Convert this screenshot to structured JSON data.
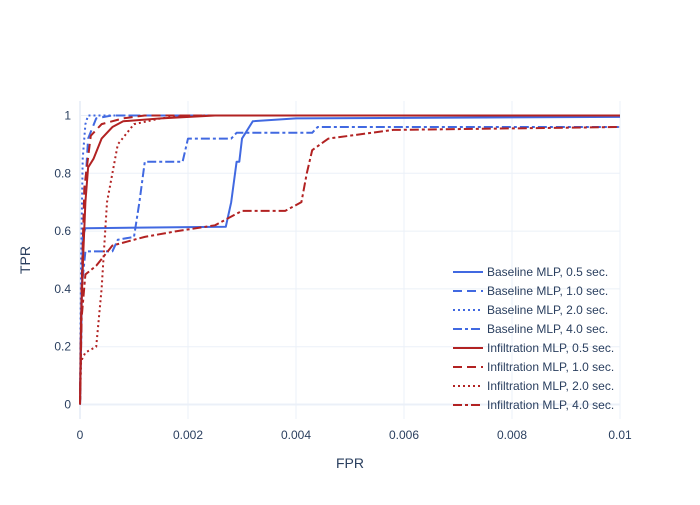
{
  "chart_data": {
    "type": "line",
    "xlabel": "FPR",
    "ylabel": "TPR",
    "xlim": [
      0,
      0.01
    ],
    "ylim": [
      0,
      1
    ],
    "x_ticks": [
      0,
      0.002,
      0.004,
      0.006,
      0.008,
      0.01
    ],
    "x_tick_labels": [
      "0",
      "0.002",
      "0.004",
      "0.006",
      "0.008",
      "0.01"
    ],
    "y_ticks": [
      0,
      0.2,
      0.4,
      0.6,
      0.8,
      1
    ],
    "y_tick_labels": [
      "0",
      "0.2",
      "0.4",
      "0.6",
      "0.8",
      "1"
    ],
    "grid": true,
    "legend_position": "bottom-right",
    "colors": {
      "baseline": "#4169e1",
      "infiltration": "#b22222"
    },
    "series": [
      {
        "name": "Baseline MLP, 0.5 sec.",
        "color": "#4169e1",
        "dash": "solid",
        "points": [
          [
            0,
            0
          ],
          [
            2e-05,
            0.2
          ],
          [
            5e-05,
            0.58
          ],
          [
            0.0001,
            0.61
          ],
          [
            0.0027,
            0.615
          ],
          [
            0.0028,
            0.7
          ],
          [
            0.0029,
            0.84
          ],
          [
            0.00295,
            0.84
          ],
          [
            0.003,
            0.92
          ],
          [
            0.0031,
            0.95
          ],
          [
            0.0032,
            0.98
          ],
          [
            0.004,
            0.99
          ],
          [
            0.01,
            0.995
          ]
        ]
      },
      {
        "name": "Baseline MLP, 1.0 sec.",
        "color": "#4169e1",
        "dash": "dash",
        "points": [
          [
            0,
            0
          ],
          [
            3e-05,
            0.4
          ],
          [
            8e-05,
            0.7
          ],
          [
            0.00015,
            0.92
          ],
          [
            0.0003,
            0.99
          ],
          [
            0.0006,
            1.0
          ],
          [
            0.01,
            1.0
          ]
        ]
      },
      {
        "name": "Baseline MLP, 2.0 sec.",
        "color": "#4169e1",
        "dash": "dot",
        "points": [
          [
            0,
            0
          ],
          [
            2e-05,
            0.5
          ],
          [
            5e-05,
            0.85
          ],
          [
            0.0001,
            0.97
          ],
          [
            0.00015,
            1.0
          ],
          [
            0.01,
            1.0
          ]
        ]
      },
      {
        "name": "Baseline MLP, 4.0 sec.",
        "color": "#4169e1",
        "dash": "dashdot",
        "points": [
          [
            0,
            0
          ],
          [
            3e-05,
            0.4
          ],
          [
            0.0001,
            0.53
          ],
          [
            0.0006,
            0.53
          ],
          [
            0.0007,
            0.57
          ],
          [
            0.001,
            0.58
          ],
          [
            0.0011,
            0.7
          ],
          [
            0.0012,
            0.84
          ],
          [
            0.0019,
            0.84
          ],
          [
            0.002,
            0.92
          ],
          [
            0.0028,
            0.92
          ],
          [
            0.0029,
            0.94
          ],
          [
            0.0043,
            0.94
          ],
          [
            0.0044,
            0.96
          ],
          [
            0.01,
            0.96
          ]
        ]
      },
      {
        "name": "Infiltration MLP, 0.5 sec.",
        "color": "#b22222",
        "dash": "solid",
        "points": [
          [
            0,
            0
          ],
          [
            2e-05,
            0.3
          ],
          [
            6e-05,
            0.52
          ],
          [
            0.0001,
            0.7
          ],
          [
            0.00015,
            0.82
          ],
          [
            0.00025,
            0.85
          ],
          [
            0.0004,
            0.92
          ],
          [
            0.0006,
            0.96
          ],
          [
            0.0008,
            0.98
          ],
          [
            0.0015,
            0.99
          ],
          [
            0.0025,
            1.0
          ],
          [
            0.01,
            1.0
          ]
        ]
      },
      {
        "name": "Infiltration MLP, 1.0 sec.",
        "color": "#b22222",
        "dash": "dash",
        "points": [
          [
            0,
            0
          ],
          [
            3e-05,
            0.4
          ],
          [
            8e-05,
            0.75
          ],
          [
            0.0002,
            0.93
          ],
          [
            0.0004,
            0.97
          ],
          [
            0.0008,
            0.99
          ],
          [
            0.0012,
            1.0
          ],
          [
            0.01,
            1.0
          ]
        ]
      },
      {
        "name": "Infiltration MLP, 2.0 sec.",
        "color": "#b22222",
        "dash": "dot",
        "points": [
          [
            0,
            0
          ],
          [
            2e-05,
            0.15
          ],
          [
            0.0001,
            0.18
          ],
          [
            0.0003,
            0.2
          ],
          [
            0.0004,
            0.4
          ],
          [
            0.0005,
            0.7
          ],
          [
            0.0007,
            0.9
          ],
          [
            0.001,
            0.97
          ],
          [
            0.0015,
            0.99
          ],
          [
            0.002,
            1.0
          ],
          [
            0.01,
            1.0
          ]
        ]
      },
      {
        "name": "Infiltration MLP, 4.0 sec.",
        "color": "#b22222",
        "dash": "dashdot",
        "points": [
          [
            0,
            0
          ],
          [
            3e-05,
            0.3
          ],
          [
            0.0001,
            0.45
          ],
          [
            0.0003,
            0.48
          ],
          [
            0.0006,
            0.55
          ],
          [
            0.0012,
            0.58
          ],
          [
            0.0018,
            0.6
          ],
          [
            0.0025,
            0.62
          ],
          [
            0.003,
            0.67
          ],
          [
            0.0038,
            0.67
          ],
          [
            0.0041,
            0.7
          ],
          [
            0.0042,
            0.8
          ],
          [
            0.0043,
            0.88
          ],
          [
            0.0046,
            0.92
          ],
          [
            0.0058,
            0.95
          ],
          [
            0.01,
            0.96
          ]
        ]
      }
    ]
  }
}
